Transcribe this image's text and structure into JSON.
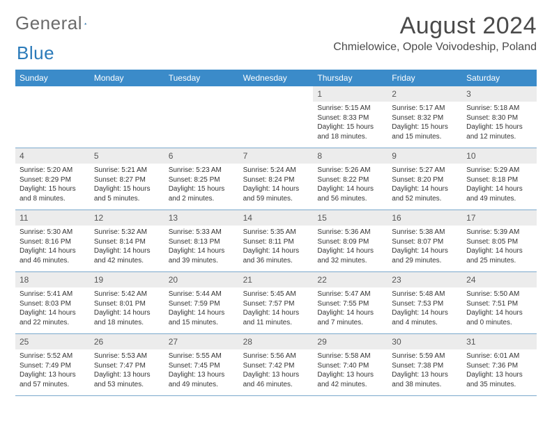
{
  "logo": {
    "word1": "General",
    "word2": "Blue"
  },
  "title": "August 2024",
  "location": "Chmielowice, Opole Voivodeship, Poland",
  "colors": {
    "header_bg": "#3b8bc9",
    "header_text": "#ffffff",
    "daynum_bg": "#ececec",
    "week_border": "#7aa8cc",
    "logo_gray": "#6b6b6b",
    "logo_blue": "#2a7ab9",
    "text": "#333333"
  },
  "weekdays": [
    "Sunday",
    "Monday",
    "Tuesday",
    "Wednesday",
    "Thursday",
    "Friday",
    "Saturday"
  ],
  "weeks": [
    [
      {
        "n": "",
        "sr": "",
        "ss": "",
        "dl": ""
      },
      {
        "n": "",
        "sr": "",
        "ss": "",
        "dl": ""
      },
      {
        "n": "",
        "sr": "",
        "ss": "",
        "dl": ""
      },
      {
        "n": "",
        "sr": "",
        "ss": "",
        "dl": ""
      },
      {
        "n": "1",
        "sr": "Sunrise: 5:15 AM",
        "ss": "Sunset: 8:33 PM",
        "dl": "Daylight: 15 hours and 18 minutes."
      },
      {
        "n": "2",
        "sr": "Sunrise: 5:17 AM",
        "ss": "Sunset: 8:32 PM",
        "dl": "Daylight: 15 hours and 15 minutes."
      },
      {
        "n": "3",
        "sr": "Sunrise: 5:18 AM",
        "ss": "Sunset: 8:30 PM",
        "dl": "Daylight: 15 hours and 12 minutes."
      }
    ],
    [
      {
        "n": "4",
        "sr": "Sunrise: 5:20 AM",
        "ss": "Sunset: 8:29 PM",
        "dl": "Daylight: 15 hours and 8 minutes."
      },
      {
        "n": "5",
        "sr": "Sunrise: 5:21 AM",
        "ss": "Sunset: 8:27 PM",
        "dl": "Daylight: 15 hours and 5 minutes."
      },
      {
        "n": "6",
        "sr": "Sunrise: 5:23 AM",
        "ss": "Sunset: 8:25 PM",
        "dl": "Daylight: 15 hours and 2 minutes."
      },
      {
        "n": "7",
        "sr": "Sunrise: 5:24 AM",
        "ss": "Sunset: 8:24 PM",
        "dl": "Daylight: 14 hours and 59 minutes."
      },
      {
        "n": "8",
        "sr": "Sunrise: 5:26 AM",
        "ss": "Sunset: 8:22 PM",
        "dl": "Daylight: 14 hours and 56 minutes."
      },
      {
        "n": "9",
        "sr": "Sunrise: 5:27 AM",
        "ss": "Sunset: 8:20 PM",
        "dl": "Daylight: 14 hours and 52 minutes."
      },
      {
        "n": "10",
        "sr": "Sunrise: 5:29 AM",
        "ss": "Sunset: 8:18 PM",
        "dl": "Daylight: 14 hours and 49 minutes."
      }
    ],
    [
      {
        "n": "11",
        "sr": "Sunrise: 5:30 AM",
        "ss": "Sunset: 8:16 PM",
        "dl": "Daylight: 14 hours and 46 minutes."
      },
      {
        "n": "12",
        "sr": "Sunrise: 5:32 AM",
        "ss": "Sunset: 8:14 PM",
        "dl": "Daylight: 14 hours and 42 minutes."
      },
      {
        "n": "13",
        "sr": "Sunrise: 5:33 AM",
        "ss": "Sunset: 8:13 PM",
        "dl": "Daylight: 14 hours and 39 minutes."
      },
      {
        "n": "14",
        "sr": "Sunrise: 5:35 AM",
        "ss": "Sunset: 8:11 PM",
        "dl": "Daylight: 14 hours and 36 minutes."
      },
      {
        "n": "15",
        "sr": "Sunrise: 5:36 AM",
        "ss": "Sunset: 8:09 PM",
        "dl": "Daylight: 14 hours and 32 minutes."
      },
      {
        "n": "16",
        "sr": "Sunrise: 5:38 AM",
        "ss": "Sunset: 8:07 PM",
        "dl": "Daylight: 14 hours and 29 minutes."
      },
      {
        "n": "17",
        "sr": "Sunrise: 5:39 AM",
        "ss": "Sunset: 8:05 PM",
        "dl": "Daylight: 14 hours and 25 minutes."
      }
    ],
    [
      {
        "n": "18",
        "sr": "Sunrise: 5:41 AM",
        "ss": "Sunset: 8:03 PM",
        "dl": "Daylight: 14 hours and 22 minutes."
      },
      {
        "n": "19",
        "sr": "Sunrise: 5:42 AM",
        "ss": "Sunset: 8:01 PM",
        "dl": "Daylight: 14 hours and 18 minutes."
      },
      {
        "n": "20",
        "sr": "Sunrise: 5:44 AM",
        "ss": "Sunset: 7:59 PM",
        "dl": "Daylight: 14 hours and 15 minutes."
      },
      {
        "n": "21",
        "sr": "Sunrise: 5:45 AM",
        "ss": "Sunset: 7:57 PM",
        "dl": "Daylight: 14 hours and 11 minutes."
      },
      {
        "n": "22",
        "sr": "Sunrise: 5:47 AM",
        "ss": "Sunset: 7:55 PM",
        "dl": "Daylight: 14 hours and 7 minutes."
      },
      {
        "n": "23",
        "sr": "Sunrise: 5:48 AM",
        "ss": "Sunset: 7:53 PM",
        "dl": "Daylight: 14 hours and 4 minutes."
      },
      {
        "n": "24",
        "sr": "Sunrise: 5:50 AM",
        "ss": "Sunset: 7:51 PM",
        "dl": "Daylight: 14 hours and 0 minutes."
      }
    ],
    [
      {
        "n": "25",
        "sr": "Sunrise: 5:52 AM",
        "ss": "Sunset: 7:49 PM",
        "dl": "Daylight: 13 hours and 57 minutes."
      },
      {
        "n": "26",
        "sr": "Sunrise: 5:53 AM",
        "ss": "Sunset: 7:47 PM",
        "dl": "Daylight: 13 hours and 53 minutes."
      },
      {
        "n": "27",
        "sr": "Sunrise: 5:55 AM",
        "ss": "Sunset: 7:45 PM",
        "dl": "Daylight: 13 hours and 49 minutes."
      },
      {
        "n": "28",
        "sr": "Sunrise: 5:56 AM",
        "ss": "Sunset: 7:42 PM",
        "dl": "Daylight: 13 hours and 46 minutes."
      },
      {
        "n": "29",
        "sr": "Sunrise: 5:58 AM",
        "ss": "Sunset: 7:40 PM",
        "dl": "Daylight: 13 hours and 42 minutes."
      },
      {
        "n": "30",
        "sr": "Sunrise: 5:59 AM",
        "ss": "Sunset: 7:38 PM",
        "dl": "Daylight: 13 hours and 38 minutes."
      },
      {
        "n": "31",
        "sr": "Sunrise: 6:01 AM",
        "ss": "Sunset: 7:36 PM",
        "dl": "Daylight: 13 hours and 35 minutes."
      }
    ]
  ]
}
